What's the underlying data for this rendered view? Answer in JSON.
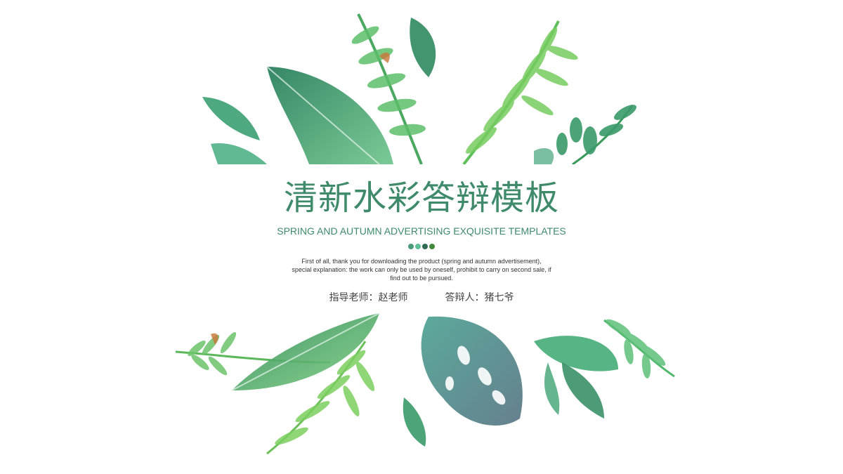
{
  "slide": {
    "title": "清新水彩答辩模板",
    "subtitle": "SPRING AND AUTUMN ADVERTISING EXQUISITE TEMPLATES",
    "description_lines": [
      "First of all, thank you for downloading the product (spring and autumn advertisement),",
      "special explanation: the work can only be used by oneself, prohibit to carry on second sale, if",
      "find out to be pursued."
    ],
    "advisor": "指导老师：赵老师",
    "presenter": "答辩人：猪七爷"
  },
  "colors": {
    "accent": "#3e8a6a",
    "dot1": "#4a9a78",
    "dot2": "#5fbf98",
    "dot3": "#2f6b50",
    "dot4": "#3f8a3c",
    "leaf_dark": "#2d7a55",
    "leaf_mid": "#3fa86a",
    "leaf_light": "#8fd06a"
  },
  "decor": {
    "top": "watercolor-leaves-top",
    "bottom": "watercolor-leaves-bottom"
  }
}
